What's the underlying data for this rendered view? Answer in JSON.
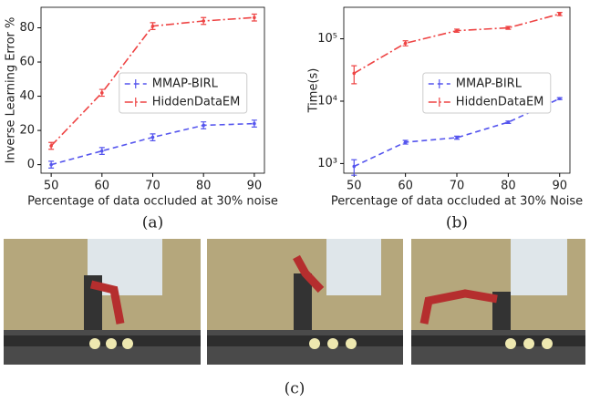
{
  "chart_data": [
    {
      "type": "line",
      "caption": "(a)",
      "x_label": "Percentage of data occluded at 30% noise",
      "y_label": "Inverse Learning Error %",
      "x": [
        50,
        60,
        70,
        80,
        90
      ],
      "xlim": [
        48,
        92
      ],
      "xticks": [
        50,
        60,
        70,
        80,
        90
      ],
      "ylim": [
        -5,
        92
      ],
      "yticks": [
        0,
        20,
        40,
        60,
        80
      ],
      "log_y": false,
      "legend": "center",
      "series": [
        {
          "name": "MMAP-BIRL",
          "color": "#5555ee",
          "dash": "dashed",
          "values": [
            0,
            8,
            16,
            23,
            24
          ],
          "errors": [
            2,
            2,
            2,
            2,
            2
          ]
        },
        {
          "name": "HiddenDataEM",
          "color": "#ee4444",
          "dash": "dashdot",
          "values": [
            11,
            42,
            81,
            84,
            86
          ],
          "errors": [
            2,
            2,
            2,
            2,
            2
          ]
        }
      ]
    },
    {
      "type": "line",
      "caption": "(b)",
      "x_label": "Percentage of data occluded at 30% Noise",
      "y_label": "Time(s)",
      "x": [
        50,
        60,
        70,
        80,
        90
      ],
      "xlim": [
        48,
        92
      ],
      "xticks": [
        50,
        60,
        70,
        80,
        90
      ],
      "ylim": [
        700,
        320000
      ],
      "yticks": [
        {
          "value": 1000,
          "label": "10³"
        },
        {
          "value": 10000,
          "label": "10⁴"
        },
        {
          "value": 100000,
          "label": "10⁵"
        }
      ],
      "log_y": true,
      "legend": "center",
      "series": [
        {
          "name": "MMAP-BIRL",
          "color": "#5555ee",
          "dash": "dashed",
          "values": [
            900,
            2200,
            2600,
            4600,
            11000
          ],
          "errors": [
            250,
            150,
            150,
            200,
            400
          ]
        },
        {
          "name": "HiddenDataEM",
          "color": "#ee4444",
          "dash": "dashdot",
          "values": [
            28000,
            85000,
            135000,
            150000,
            250000
          ],
          "errors": [
            9000,
            8000,
            8000,
            8000,
            15000
          ]
        }
      ]
    }
  ],
  "figure": {
    "photo_caption": "(c)"
  }
}
